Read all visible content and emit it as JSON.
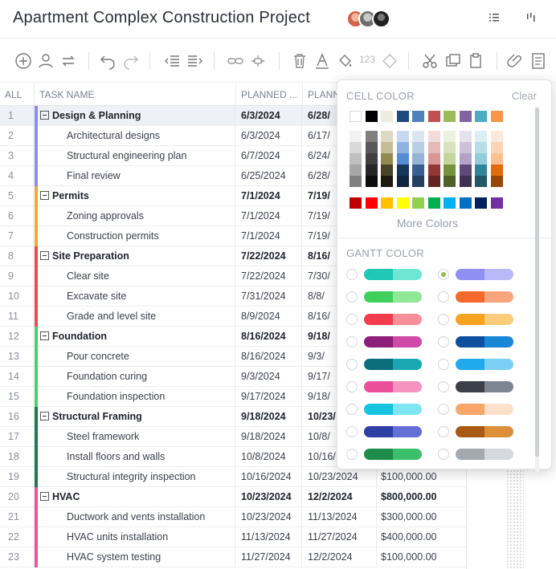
{
  "header": {
    "title": "Apartment Complex Construction Project",
    "icons": [
      "list-icon",
      "gantt-icon"
    ]
  },
  "toolbar": {
    "icons": [
      "add-icon",
      "add-user-icon",
      "repeat-icon",
      "undo-icon",
      "redo-icon",
      "outdent-icon",
      "indent-icon",
      "link-icon",
      "unlink-icon",
      "delete-icon",
      "font-color-icon",
      "fill-color-icon",
      "numbering-icon",
      "diamond-icon",
      "cut-icon",
      "copy-icon",
      "paste-icon",
      "attachment-icon",
      "notes-icon"
    ],
    "number_label": "123"
  },
  "grid": {
    "columns": [
      "ALL",
      "TASK NAME",
      "PLANNED ...",
      "PLANN..."
    ],
    "rows": [
      {
        "num": "1",
        "task": "Design & Planning",
        "start": "6/3/2024",
        "end": "6/28/",
        "cost": "",
        "parent": true,
        "color": "#8e8cf0"
      },
      {
        "num": "2",
        "task": "Architectural designs",
        "start": "6/3/2024",
        "end": "6/17/",
        "cost": "",
        "parent": false,
        "color": "#8e8cf0"
      },
      {
        "num": "3",
        "task": "Structural engineering plan",
        "start": "6/7/2024",
        "end": "6/24/",
        "cost": "",
        "parent": false,
        "color": "#8e8cf0"
      },
      {
        "num": "4",
        "task": "Final review",
        "start": "6/25/2024",
        "end": "6/28/",
        "cost": "",
        "parent": false,
        "color": "#8e8cf0"
      },
      {
        "num": "5",
        "task": "Permits",
        "start": "7/1/2024",
        "end": "7/19/",
        "cost": "",
        "parent": true,
        "color": "#f3a536"
      },
      {
        "num": "6",
        "task": "Zoning approvals",
        "start": "7/1/2024",
        "end": "7/19/",
        "cost": "",
        "parent": false,
        "color": "#f3a536"
      },
      {
        "num": "7",
        "task": "Construction permits",
        "start": "7/1/2024",
        "end": "7/19/",
        "cost": "",
        "parent": false,
        "color": "#f3a536"
      },
      {
        "num": "8",
        "task": "Site Preparation",
        "start": "7/22/2024",
        "end": "8/16/",
        "cost": "",
        "parent": true,
        "color": "#e64d4d"
      },
      {
        "num": "9",
        "task": "Clear site",
        "start": "7/22/2024",
        "end": "7/30/",
        "cost": "",
        "parent": false,
        "color": "#e64d4d"
      },
      {
        "num": "10",
        "task": "Excavate site",
        "start": "7/31/2024",
        "end": "8/8/",
        "cost": "",
        "parent": false,
        "color": "#e64d4d"
      },
      {
        "num": "11",
        "task": "Grade and level site",
        "start": "8/9/2024",
        "end": "8/16/",
        "cost": "",
        "parent": false,
        "color": "#e64d4d"
      },
      {
        "num": "12",
        "task": "Foundation",
        "start": "8/16/2024",
        "end": "9/18/",
        "cost": "",
        "parent": true,
        "color": "#4ccf6b"
      },
      {
        "num": "13",
        "task": "Pour concrete",
        "start": "8/16/2024",
        "end": "9/3/",
        "cost": "",
        "parent": false,
        "color": "#4ccf6b"
      },
      {
        "num": "14",
        "task": "Foundation curing",
        "start": "9/3/2024",
        "end": "9/17/",
        "cost": "",
        "parent": false,
        "color": "#4ccf6b"
      },
      {
        "num": "15",
        "task": "Foundation inspection",
        "start": "9/17/2024",
        "end": "9/18/",
        "cost": "",
        "parent": false,
        "color": "#4ccf6b"
      },
      {
        "num": "16",
        "task": "Structural Framing",
        "start": "9/18/2024",
        "end": "10/23/",
        "cost": "",
        "parent": true,
        "color": "#1a7a4a"
      },
      {
        "num": "17",
        "task": "Steel framework",
        "start": "9/18/2024",
        "end": "10/8/",
        "cost": "",
        "parent": false,
        "color": "#1a7a4a"
      },
      {
        "num": "18",
        "task": "Install floors and walls",
        "start": "10/8/2024",
        "end": "10/16/",
        "cost": "",
        "parent": false,
        "color": "#1a7a4a"
      },
      {
        "num": "19",
        "task": "Structural integrity inspection",
        "start": "10/16/2024",
        "end": "10/23/2024",
        "cost": "$100,000.00",
        "parent": false,
        "color": "#1a7a4a"
      },
      {
        "num": "20",
        "task": "HVAC",
        "start": "10/23/2024",
        "end": "12/2/2024",
        "cost": "$800,000.00",
        "parent": true,
        "color": "#e8559a"
      },
      {
        "num": "21",
        "task": "Ductwork and vents installation",
        "start": "10/23/2024",
        "end": "11/13/2024",
        "cost": "$300,000.00",
        "parent": false,
        "color": "#e8559a"
      },
      {
        "num": "22",
        "task": "HVAC units installation",
        "start": "11/13/2024",
        "end": "11/27/2024",
        "cost": "$400,000.00",
        "parent": false,
        "color": "#e8559a"
      },
      {
        "num": "23",
        "task": "HVAC system testing",
        "start": "11/27/2024",
        "end": "12/2/2024",
        "cost": "$100,000.00",
        "parent": false,
        "color": "#e8559a"
      }
    ]
  },
  "color_popup": {
    "cell_color_label": "CELL COLOR",
    "clear_label": "Clear",
    "top_colors": [
      "#ffffff",
      "#000000",
      "#eeece1",
      "#1f497d",
      "#4f81bd",
      "#c0504d",
      "#9bbb59",
      "#8064a2",
      "#4bacc6",
      "#f79646"
    ],
    "shade_columns": [
      [
        "#f2f2f2",
        "#d9d9d9",
        "#bfbfbf",
        "#a6a6a6",
        "#808080"
      ],
      [
        "#7f7f7f",
        "#595959",
        "#404040",
        "#262626",
        "#0d0d0d"
      ],
      [
        "#ddd9c3",
        "#c4bd97",
        "#938953",
        "#494429",
        "#1d1b10"
      ],
      [
        "#c6d9f0",
        "#8db3e2",
        "#548dd4",
        "#17365d",
        "#0f243e"
      ],
      [
        "#dbe5f1",
        "#b8cce4",
        "#95b3d7",
        "#366092",
        "#244061"
      ],
      [
        "#f2dcdb",
        "#e5b9b7",
        "#d99694",
        "#953734",
        "#632423"
      ],
      [
        "#ebf1dd",
        "#d7e3bc",
        "#c3d69b",
        "#76923c",
        "#4f6128"
      ],
      [
        "#e5e0ec",
        "#ccc1d9",
        "#b2a2c7",
        "#5f497a",
        "#3f3151"
      ],
      [
        "#dbeef3",
        "#b7dde8",
        "#92cddc",
        "#31859b",
        "#205867"
      ],
      [
        "#fdeada",
        "#fbd5b5",
        "#fac08f",
        "#e36c09",
        "#974806"
      ]
    ],
    "standard_colors": [
      "#c00000",
      "#ff0000",
      "#ffc000",
      "#ffff00",
      "#92d050",
      "#00b050",
      "#00b0f0",
      "#0070c0",
      "#002060",
      "#7030a0"
    ],
    "more_colors_label": "More Colors",
    "gantt_color_label": "GANTT COLOR",
    "gantt_colors_left": [
      [
        "#1ec8b4",
        "#6ee6d4"
      ],
      [
        "#3ecf5c",
        "#8ee896"
      ],
      [
        "#f23d4f",
        "#f7909a"
      ],
      [
        "#8b1f7a",
        "#d04aa8"
      ],
      [
        "#0a6e7a",
        "#1aa7b4"
      ],
      [
        "#ec4f9a",
        "#f594bf"
      ],
      [
        "#16c4e0",
        "#7ee6f3"
      ],
      [
        "#2e3fa6",
        "#6470d6"
      ],
      [
        "#1e8c4a",
        "#3cbf6a"
      ]
    ],
    "gantt_colors_right": [
      [
        "#8f8ef2",
        "#b9b8f8"
      ],
      [
        "#f4692c",
        "#f9a57b"
      ],
      [
        "#f7a322",
        "#fbcd7a"
      ],
      [
        "#0e4fa0",
        "#1a86d6"
      ],
      [
        "#20a9ec",
        "#7acff7"
      ],
      [
        "#3a3f4a",
        "#7e8592"
      ],
      [
        "#f8a66b",
        "#fde1cb"
      ],
      [
        "#a85a12",
        "#de8f3a"
      ],
      [
        "#a4a9b0",
        "#d5d8dd"
      ]
    ],
    "selected_gantt": "right-0"
  }
}
